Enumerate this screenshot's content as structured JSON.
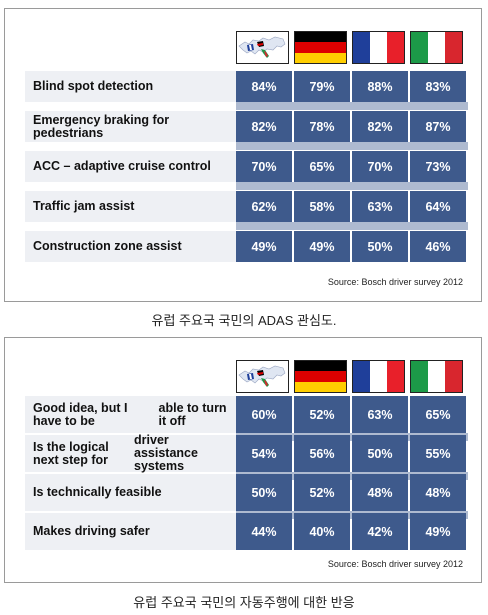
{
  "countries": [
    {
      "name": "europe-map",
      "icon": "europe-map-icon"
    },
    {
      "name": "germany",
      "icon": "germany-flag-icon",
      "colors": [
        "#000000",
        "#dd0000",
        "#ffce00"
      ]
    },
    {
      "name": "france",
      "icon": "france-flag-icon",
      "colors": [
        "#1f3f9a",
        "#ffffff",
        "#e8202a"
      ]
    },
    {
      "name": "italy",
      "icon": "italy-flag-icon",
      "colors": [
        "#1c9a48",
        "#ffffff",
        "#d8262e"
      ]
    }
  ],
  "colors": {
    "value_cell": "#3e5a8c",
    "label_cell": "#eef0f4",
    "separator": "#aebad0"
  },
  "chart_data": [
    {
      "type": "table",
      "categories": [
        "Blind spot detection",
        "Emergency braking for pedestrians",
        "ACC – adaptive cruise control",
        "Traffic jam assist",
        "Construction zone assist"
      ],
      "rows": [
        {
          "label": "Blind spot detection",
          "values": [
            "84%",
            "79%",
            "88%",
            "83%"
          ]
        },
        {
          "label": "Emergency braking for pedestrians",
          "values": [
            "82%",
            "78%",
            "82%",
            "87%"
          ]
        },
        {
          "label": "ACC – adaptive cruise control",
          "values": [
            "70%",
            "65%",
            "70%",
            "73%"
          ]
        },
        {
          "label": "Traffic jam assist",
          "values": [
            "62%",
            "58%",
            "63%",
            "64%"
          ]
        },
        {
          "label": "Construction zone assist",
          "values": [
            "49%",
            "49%",
            "50%",
            "46%"
          ]
        }
      ],
      "source": "Source: Bosch driver survey 2012",
      "caption": "유럽 주요국 국민의 ADAS 관심도."
    },
    {
      "type": "table",
      "categories": [
        "Good idea, but I have to be able to turn it off",
        "Is the logical next step for driver assistance systems",
        "Is technically feasible",
        "Makes driving safer"
      ],
      "rows": [
        {
          "label_lines": [
            "Good idea, but I have to be",
            "able to turn it off"
          ],
          "values": [
            "60%",
            "52%",
            "63%",
            "65%"
          ]
        },
        {
          "label_lines": [
            "Is the logical next step for",
            "driver assistance systems"
          ],
          "values": [
            "54%",
            "56%",
            "50%",
            "55%"
          ]
        },
        {
          "label_lines": [
            "Is technically feasible"
          ],
          "values": [
            "50%",
            "52%",
            "48%",
            "48%"
          ]
        },
        {
          "label_lines": [
            "Makes driving safer"
          ],
          "values": [
            "44%",
            "40%",
            "42%",
            "49%"
          ]
        }
      ],
      "source": "Source: Bosch driver survey 2012",
      "caption": "유럽 주요국 국민의 자동주행에 대한 반응"
    }
  ]
}
